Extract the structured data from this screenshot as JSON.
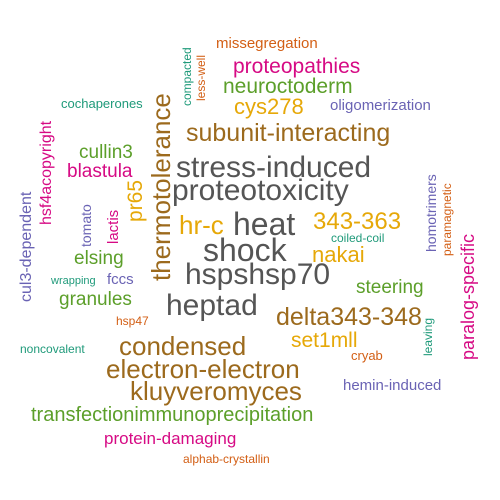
{
  "colors": {
    "green": "#5c9f2a",
    "teal": "#1f9a7a",
    "orange": "#d35f15",
    "magenta": "#d60a84",
    "purple": "#6a63b4",
    "brown": "#9c6a1d",
    "gold": "#e6a808",
    "gray": "#555555"
  },
  "words": {
    "missegregation": "missegregation",
    "compacted": "compacted",
    "less_well": "less-well",
    "proteopathies": "proteopathies",
    "neuroctoderm": "neuroctoderm",
    "cochaperones": "cochaperones",
    "hsf4acopyright": "hsf4acopyright",
    "thermotolerance": "thermotolerance",
    "cys278": "cys278",
    "oligomerization": "oligomerization",
    "subunit_interacting": "subunit-interacting",
    "cullin3": "cullin3",
    "stress_induced": "stress-induced",
    "blastula": "blastula",
    "proteotoxicity": "proteotoxicity",
    "pr65": "pr65",
    "homotrimers": "homotrimers",
    "paramagnetic": "paramagnetic",
    "cul3_dependent": "cul3-dependent",
    "tomato": "tomato",
    "lactis": "lactis",
    "hr_c": "hr-c",
    "heat": "heat",
    "n343_363": "343-363",
    "paralog_specific": "paralog-specific",
    "shock": "shock",
    "nakai": "nakai",
    "coiled_coil": "coiled-coil",
    "elsing": "elsing",
    "hspshsp70": "hspshsp70",
    "wrapping": "wrapping",
    "fccs": "fccs",
    "steering": "steering",
    "granules": "granules",
    "heptad": "heptad",
    "delta343_348": "delta343-348",
    "hsp47": "hsp47",
    "set1mll": "set1mll",
    "condensed": "condensed",
    "noncovalent": "noncovalent",
    "leaving": "leaving",
    "cryab": "cryab",
    "electron_electron": "electron-electron",
    "kluyveromyces": "kluyveromyces",
    "hemin_induced": "hemin-induced",
    "transfectionimmunoprecipitation": "transfectionimmunoprecipitation",
    "protein_damaging": "protein-damaging",
    "alphab_crystallin": "alphab-crystallin"
  }
}
